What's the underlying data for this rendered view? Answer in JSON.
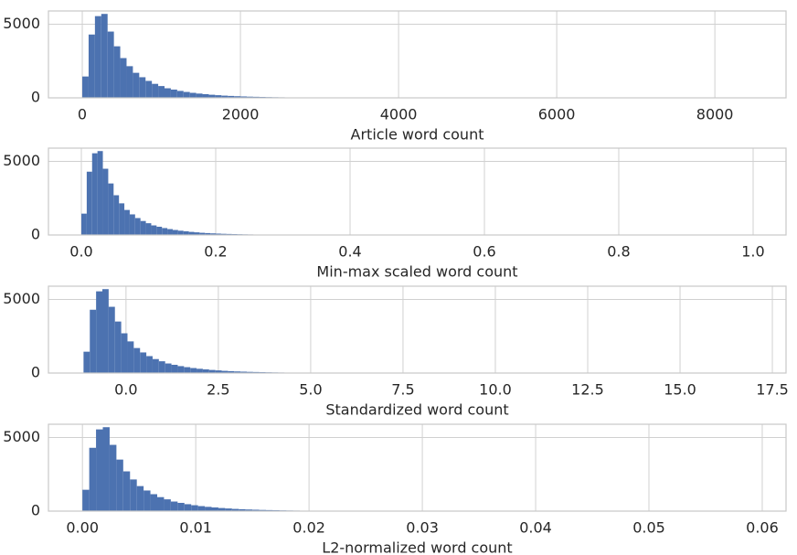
{
  "chart_data": [
    {
      "type": "histogram",
      "xlabel": "Article word count",
      "color": "#4c72b0",
      "grid": true,
      "bins": [
        0,
        80,
        160,
        240,
        320,
        400,
        480,
        560,
        640,
        720,
        800,
        880,
        960,
        1040,
        1120,
        1200,
        1280,
        1360,
        1440,
        1520,
        1600,
        1680,
        1760,
        1840,
        1920,
        2000,
        2080,
        2160,
        2240,
        2320,
        2400,
        2480,
        2560,
        2640,
        2720,
        2800,
        2880,
        2960,
        3040,
        3120,
        3200
      ],
      "values": [
        1450,
        4300,
        5550,
        5700,
        4500,
        3500,
        2700,
        2150,
        1700,
        1400,
        1150,
        950,
        800,
        650,
        560,
        470,
        400,
        340,
        290,
        250,
        210,
        180,
        150,
        130,
        110,
        95,
        80,
        70,
        60,
        50,
        42,
        36,
        30,
        25,
        20,
        16,
        12,
        10,
        8,
        6
      ],
      "xlim": [
        -428,
        8900
      ],
      "ylim": [
        0,
        5900
      ],
      "xticks": [
        0,
        2000,
        4000,
        6000,
        8000
      ],
      "yticks": [
        0,
        5000
      ]
    },
    {
      "type": "histogram",
      "xlabel": "Min-max scaled word count",
      "color": "#4c72b0",
      "grid": true,
      "bins": [
        0,
        0.008,
        0.016,
        0.024,
        0.032,
        0.04,
        0.048,
        0.056,
        0.064,
        0.072,
        0.08,
        0.088,
        0.096,
        0.104,
        0.112,
        0.12,
        0.128,
        0.136,
        0.144,
        0.152,
        0.16,
        0.168,
        0.176,
        0.184,
        0.192,
        0.2,
        0.208,
        0.216,
        0.224,
        0.232,
        0.24,
        0.248,
        0.256,
        0.264,
        0.272,
        0.28,
        0.288,
        0.296,
        0.304,
        0.312,
        0.32
      ],
      "values": [
        1450,
        4300,
        5550,
        5700,
        4500,
        3500,
        2700,
        2150,
        1700,
        1400,
        1150,
        950,
        800,
        650,
        560,
        470,
        400,
        340,
        290,
        250,
        210,
        180,
        150,
        130,
        110,
        95,
        80,
        70,
        60,
        50,
        42,
        36,
        30,
        25,
        20,
        16,
        12,
        10,
        8,
        6
      ],
      "xlim": [
        -0.049,
        1.049
      ],
      "ylim": [
        0,
        5900
      ],
      "xticks": [
        {
          "value": 0,
          "label": "0.0"
        },
        0.2,
        0.4,
        0.6,
        0.8,
        {
          "value": 1,
          "label": "1.0"
        }
      ],
      "yticks": [
        0,
        5000
      ]
    },
    {
      "type": "histogram",
      "xlabel": "Standardized word count",
      "color": "#4c72b0",
      "grid": true,
      "bins": [
        -1.15,
        -0.98,
        -0.81,
        -0.64,
        -0.47,
        -0.3,
        -0.13,
        0.04,
        0.21,
        0.38,
        0.55,
        0.72,
        0.89,
        1.06,
        1.23,
        1.4,
        1.57,
        1.74,
        1.91,
        2.08,
        2.25,
        2.42,
        2.59,
        2.76,
        2.93,
        3.1,
        3.27,
        3.44,
        3.61,
        3.78,
        3.95,
        4.12,
        4.29,
        4.46,
        4.63,
        4.8,
        4.97,
        5.14,
        5.31,
        5.48,
        5.65
      ],
      "values": [
        1450,
        4300,
        5550,
        5700,
        4500,
        3500,
        2700,
        2150,
        1700,
        1400,
        1150,
        950,
        800,
        650,
        560,
        470,
        400,
        340,
        290,
        250,
        210,
        180,
        150,
        130,
        110,
        95,
        80,
        70,
        60,
        50,
        42,
        36,
        30,
        25,
        20,
        16,
        12,
        10,
        8,
        6
      ],
      "xlim": [
        -2.1,
        17.87
      ],
      "ylim": [
        0,
        5900
      ],
      "xticks": [
        {
          "value": 0,
          "label": "0.0"
        },
        2.5,
        {
          "value": 5,
          "label": "5.0"
        },
        7.5,
        {
          "value": 10,
          "label": "10.0"
        },
        12.5,
        {
          "value": 15,
          "label": "15.0"
        },
        17.5
      ],
      "yticks": [
        0,
        5000
      ]
    },
    {
      "type": "histogram",
      "xlabel": "L2-normalized word count",
      "color": "#4c72b0",
      "grid": true,
      "bins": [
        0,
        0.0006,
        0.0012,
        0.0018,
        0.0024,
        0.003,
        0.0036,
        0.0042,
        0.0048,
        0.0054,
        0.006,
        0.0066,
        0.0072,
        0.0078,
        0.0084,
        0.009,
        0.0096,
        0.0102,
        0.0108,
        0.0114,
        0.012,
        0.0126,
        0.0132,
        0.0138,
        0.0144,
        0.015,
        0.0156,
        0.0162,
        0.0168,
        0.0174,
        0.018,
        0.0186,
        0.0192,
        0.0198,
        0.0204,
        0.021,
        0.0216,
        0.0222,
        0.0228,
        0.0234,
        0.024
      ],
      "values": [
        1450,
        4300,
        5550,
        5700,
        4500,
        3500,
        2700,
        2150,
        1700,
        1400,
        1150,
        950,
        800,
        650,
        560,
        470,
        400,
        340,
        290,
        250,
        210,
        180,
        150,
        130,
        110,
        95,
        80,
        70,
        60,
        50,
        42,
        36,
        30,
        25,
        20,
        16,
        12,
        10,
        8,
        6
      ],
      "xlim": [
        -0.003,
        0.0621
      ],
      "ylim": [
        0,
        5900
      ],
      "xticks": [
        {
          "value": 0,
          "label": "0.00"
        },
        0.01,
        0.02,
        0.03,
        0.04,
        0.05,
        0.06
      ],
      "yticks": [
        0,
        5000
      ]
    }
  ]
}
